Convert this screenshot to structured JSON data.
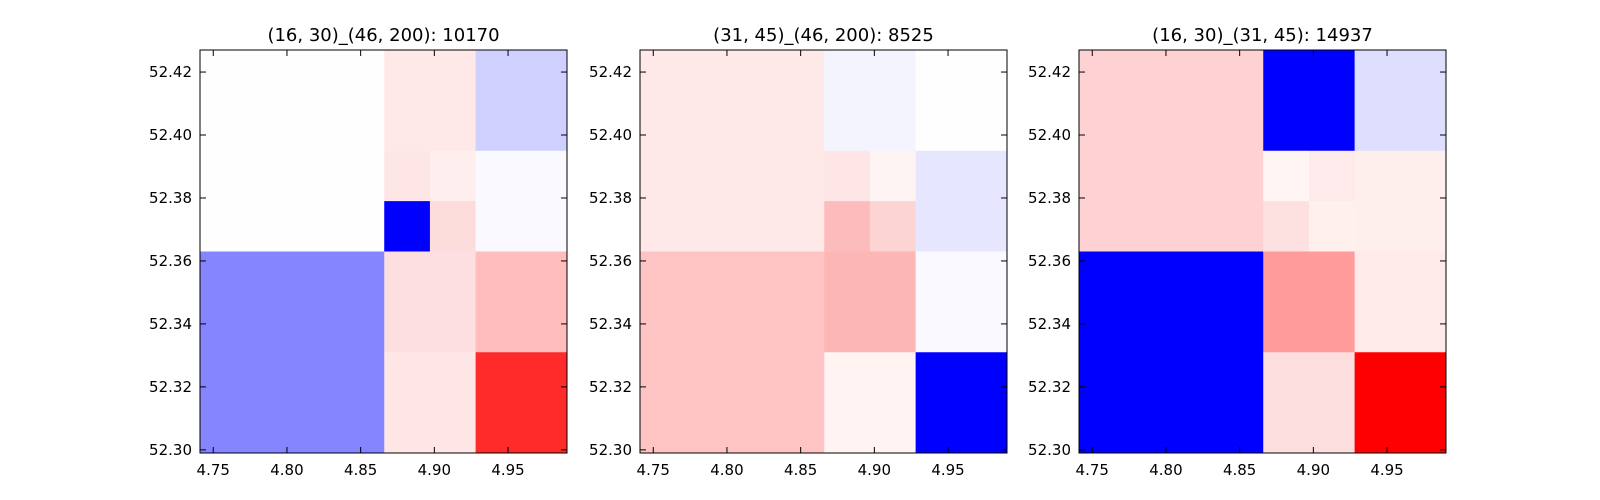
{
  "chart_data": [
    {
      "type": "heatmap",
      "title": "(16, 30)_(46, 200): 10170",
      "xlabel": "",
      "ylabel": "",
      "xlim": [
        4.741,
        4.99
      ],
      "ylim": [
        52.299,
        52.427
      ],
      "x_ticks": [
        "4.75",
        "4.80",
        "4.85",
        "4.90",
        "4.95"
      ],
      "y_ticks": [
        "52.30",
        "52.32",
        "52.34",
        "52.36",
        "52.38",
        "52.40",
        "52.42"
      ],
      "cells": [
        {
          "x0": 4.741,
          "x1": 4.866,
          "y0": 52.363,
          "y1": 52.427,
          "color": "#fefefe"
        },
        {
          "x0": 4.741,
          "x1": 4.866,
          "y0": 52.299,
          "y1": 52.363,
          "color": "#8585ff"
        },
        {
          "x0": 4.866,
          "x1": 4.928,
          "y0": 52.395,
          "y1": 52.427,
          "color": "#fee8e8"
        },
        {
          "x0": 4.928,
          "x1": 4.99,
          "y0": 52.395,
          "y1": 52.427,
          "color": "#d0d0ff"
        },
        {
          "x0": 4.866,
          "x1": 4.897,
          "y0": 52.379,
          "y1": 52.395,
          "color": "#fee6e6"
        },
        {
          "x0": 4.897,
          "x1": 4.928,
          "y0": 52.379,
          "y1": 52.395,
          "color": "#feeeee"
        },
        {
          "x0": 4.866,
          "x1": 4.897,
          "y0": 52.363,
          "y1": 52.379,
          "color": "#0000ff"
        },
        {
          "x0": 4.897,
          "x1": 4.928,
          "y0": 52.363,
          "y1": 52.379,
          "color": "#fddcdc"
        },
        {
          "x0": 4.928,
          "x1": 4.99,
          "y0": 52.363,
          "y1": 52.395,
          "color": "#f9f9ff"
        },
        {
          "x0": 4.866,
          "x1": 4.928,
          "y0": 52.331,
          "y1": 52.363,
          "color": "#fedfe1"
        },
        {
          "x0": 4.928,
          "x1": 4.99,
          "y0": 52.331,
          "y1": 52.363,
          "color": "#ffbdbd"
        },
        {
          "x0": 4.866,
          "x1": 4.928,
          "y0": 52.299,
          "y1": 52.331,
          "color": "#fee6e6"
        },
        {
          "x0": 4.928,
          "x1": 4.99,
          "y0": 52.299,
          "y1": 52.331,
          "color": "#ff2a2a"
        }
      ]
    },
    {
      "type": "heatmap",
      "title": "(31, 45)_(46, 200): 8525",
      "xlabel": "",
      "ylabel": "",
      "xlim": [
        4.741,
        4.99
      ],
      "ylim": [
        52.299,
        52.427
      ],
      "x_ticks": [
        "4.75",
        "4.80",
        "4.85",
        "4.90",
        "4.95"
      ],
      "y_ticks": [
        "52.30",
        "52.32",
        "52.34",
        "52.36",
        "52.38",
        "52.40",
        "52.42"
      ],
      "cells": [
        {
          "x0": 4.741,
          "x1": 4.866,
          "y0": 52.363,
          "y1": 52.427,
          "color": "#fee8e8"
        },
        {
          "x0": 4.741,
          "x1": 4.866,
          "y0": 52.299,
          "y1": 52.363,
          "color": "#fec4c4"
        },
        {
          "x0": 4.866,
          "x1": 4.928,
          "y0": 52.395,
          "y1": 52.427,
          "color": "#f4f4ff"
        },
        {
          "x0": 4.928,
          "x1": 4.99,
          "y0": 52.395,
          "y1": 52.427,
          "color": "#fefefe"
        },
        {
          "x0": 4.866,
          "x1": 4.897,
          "y0": 52.379,
          "y1": 52.395,
          "color": "#fee6e6"
        },
        {
          "x0": 4.897,
          "x1": 4.928,
          "y0": 52.379,
          "y1": 52.395,
          "color": "#fef4f4"
        },
        {
          "x0": 4.866,
          "x1": 4.897,
          "y0": 52.363,
          "y1": 52.379,
          "color": "#fdbcbc"
        },
        {
          "x0": 4.897,
          "x1": 4.928,
          "y0": 52.363,
          "y1": 52.379,
          "color": "#fdd4d4"
        },
        {
          "x0": 4.928,
          "x1": 4.99,
          "y0": 52.363,
          "y1": 52.395,
          "color": "#e6e6ff"
        },
        {
          "x0": 4.866,
          "x1": 4.928,
          "y0": 52.331,
          "y1": 52.363,
          "color": "#fdb6b6"
        },
        {
          "x0": 4.928,
          "x1": 4.99,
          "y0": 52.331,
          "y1": 52.363,
          "color": "#f9f9ff"
        },
        {
          "x0": 4.866,
          "x1": 4.928,
          "y0": 52.299,
          "y1": 52.331,
          "color": "#fff4f2"
        },
        {
          "x0": 4.928,
          "x1": 4.99,
          "y0": 52.299,
          "y1": 52.331,
          "color": "#0000ff"
        }
      ]
    },
    {
      "type": "heatmap",
      "title": "(16, 30)_(31, 45): 14937",
      "xlabel": "",
      "ylabel": "",
      "xlim": [
        4.741,
        4.99
      ],
      "ylim": [
        52.299,
        52.427
      ],
      "x_ticks": [
        "4.75",
        "4.80",
        "4.85",
        "4.90",
        "4.95"
      ],
      "y_ticks": [
        "52.30",
        "52.32",
        "52.34",
        "52.36",
        "52.38",
        "52.40",
        "52.42"
      ],
      "cells": [
        {
          "x0": 4.741,
          "x1": 4.866,
          "y0": 52.363,
          "y1": 52.427,
          "color": "#fed2d2"
        },
        {
          "x0": 4.741,
          "x1": 4.866,
          "y0": 52.299,
          "y1": 52.363,
          "color": "#0000ff"
        },
        {
          "x0": 4.866,
          "x1": 4.928,
          "y0": 52.395,
          "y1": 52.427,
          "color": "#0000ff"
        },
        {
          "x0": 4.928,
          "x1": 4.99,
          "y0": 52.395,
          "y1": 52.427,
          "color": "#dedeff"
        },
        {
          "x0": 4.866,
          "x1": 4.897,
          "y0": 52.379,
          "y1": 52.395,
          "color": "#fff6f4"
        },
        {
          "x0": 4.897,
          "x1": 4.928,
          "y0": 52.379,
          "y1": 52.395,
          "color": "#feeaea"
        },
        {
          "x0": 4.866,
          "x1": 4.897,
          "y0": 52.363,
          "y1": 52.379,
          "color": "#fde0e0"
        },
        {
          "x0": 4.897,
          "x1": 4.928,
          "y0": 52.363,
          "y1": 52.379,
          "color": "#fff0ee"
        },
        {
          "x0": 4.928,
          "x1": 4.99,
          "y0": 52.363,
          "y1": 52.395,
          "color": "#feeeec"
        },
        {
          "x0": 4.866,
          "x1": 4.928,
          "y0": 52.331,
          "y1": 52.363,
          "color": "#ff9b9b"
        },
        {
          "x0": 4.928,
          "x1": 4.99,
          "y0": 52.331,
          "y1": 52.363,
          "color": "#feeae8"
        },
        {
          "x0": 4.866,
          "x1": 4.928,
          "y0": 52.299,
          "y1": 52.331,
          "color": "#fddede"
        },
        {
          "x0": 4.928,
          "x1": 4.99,
          "y0": 52.299,
          "y1": 52.331,
          "color": "#ff0000"
        }
      ]
    }
  ]
}
